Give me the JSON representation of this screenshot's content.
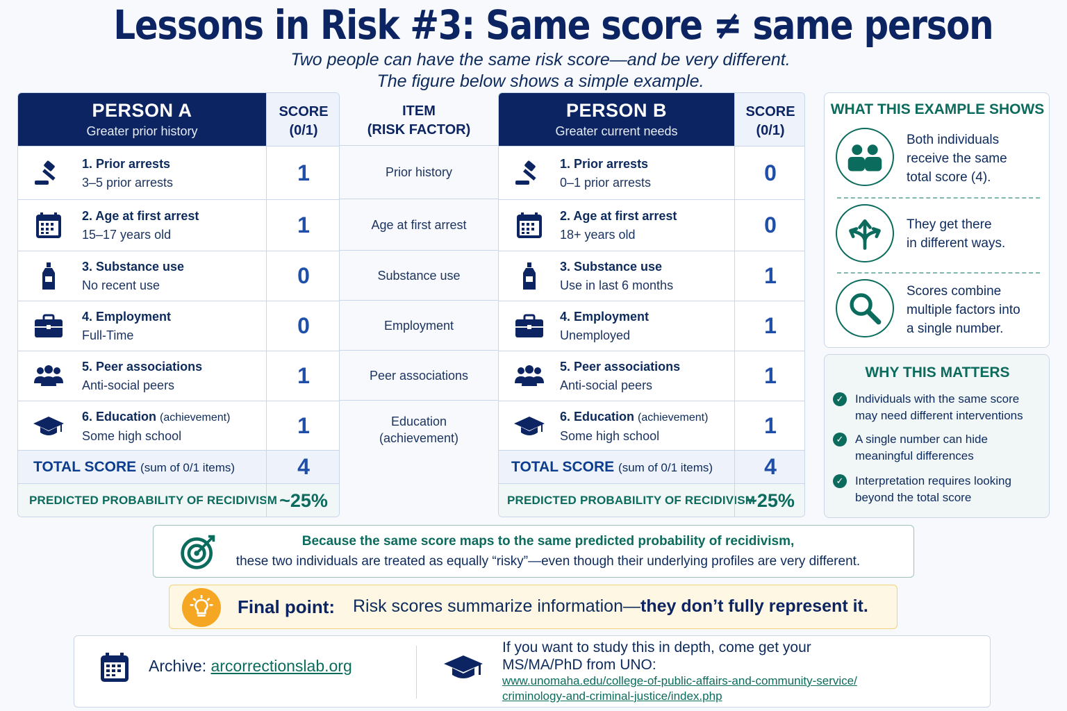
{
  "title": "Lessons in Risk #3: Same score ≠ same person",
  "subtitle_line1": "Two people can have the same risk score—and be very different.",
  "subtitle_line2": "The figure below shows a simple example.",
  "score_header_line1": "SCORE",
  "score_header_line2": "(0/1)",
  "item_header_line1": "ITEM",
  "item_header_line2": "(RISK FACTOR)",
  "items": [
    "Prior history",
    "Age at first arrest",
    "Substance use",
    "Employment",
    "Peer associations",
    "Education",
    "(achievement)"
  ],
  "total_label": "TOTAL SCORE",
  "total_note": "(sum of 0/1 items)",
  "prob_label": "PREDICTED PROBABILITY OF RECIDIVISM",
  "person_a": {
    "name": "PERSON A",
    "desc": "Greater prior history",
    "rows": [
      {
        "title": "1. Prior arrests",
        "note": "",
        "value": "3–5 prior arrests",
        "score": "1"
      },
      {
        "title": "2. Age at first arrest",
        "note": "",
        "value": "15–17 years old",
        "score": "1"
      },
      {
        "title": "3. Substance use",
        "note": "",
        "value": "No recent use",
        "score": "0"
      },
      {
        "title": "4. Employment",
        "note": "",
        "value": "Full-Time",
        "score": "0"
      },
      {
        "title": "5. Peer associations",
        "note": "",
        "value": "Anti-social peers",
        "score": "1"
      },
      {
        "title": "6. Education",
        "note": "(achievement)",
        "value": "Some high school",
        "score": "1"
      }
    ],
    "total": "4",
    "prob": "~25%"
  },
  "person_b": {
    "name": "PERSON B",
    "desc": "Greater current needs",
    "rows": [
      {
        "title": "1. Prior arrests",
        "note": "",
        "value": "0–1 prior arrests",
        "score": "0"
      },
      {
        "title": "2. Age at first arrest",
        "note": "",
        "value": "18+ years old",
        "score": "0"
      },
      {
        "title": "3. Substance use",
        "note": "",
        "value": "Use in last 6 months",
        "score": "1"
      },
      {
        "title": "4. Employment",
        "note": "",
        "value": "Unemployed",
        "score": "1"
      },
      {
        "title": "5. Peer associations",
        "note": "",
        "value": "Anti-social peers",
        "score": "1"
      },
      {
        "title": "6. Education",
        "note": "(achievement)",
        "value": "Some high school",
        "score": "1"
      }
    ],
    "total": "4",
    "prob": "~25%"
  },
  "shows": {
    "heading": "WHAT THIS EXAMPLE SHOWS",
    "points": [
      {
        "icon": "people-icon",
        "lines": [
          "Both individuals",
          "receive the same",
          "total score (4)."
        ]
      },
      {
        "icon": "split-arrows-icon",
        "lines": [
          "They get there",
          "in different ways."
        ]
      },
      {
        "icon": "magnifier-icon",
        "lines": [
          "Scores combine",
          "multiple factors into",
          "a single number."
        ]
      }
    ]
  },
  "why": {
    "heading": "WHY THIS MATTERS",
    "points": [
      [
        "Individuals with the same score",
        "may need different interventions"
      ],
      [
        "A single number can hide",
        "meaningful differences"
      ],
      [
        "Interpretation requires looking",
        "beyond the total score"
      ]
    ]
  },
  "because_line1": "Because the same score maps to the same predicted probability of recidivism,",
  "because_line2": "these two individuals are treated as equally “risky”—even though their underlying profiles are very different.",
  "final_label": "Final point:",
  "final_text": "Risk scores summarize information—",
  "final_bold": "they don’t fully represent it.",
  "archive_label": "Archive:",
  "archive_link": "arcorrectionslab.org",
  "study_line1": "If you want to study this in depth, come get your",
  "study_line2": "MS/MA/PhD from UNO:",
  "url_line1": "www.unomaha.edu/college-of-public-affairs-and-community-service/",
  "url_line2": "criminology-and-criminal-justice/index.php",
  "colors": {
    "navy": "#0c2461",
    "teal": "#0b6b5c",
    "score_blue": "#1f4fa8",
    "gold": "#f5a623"
  }
}
